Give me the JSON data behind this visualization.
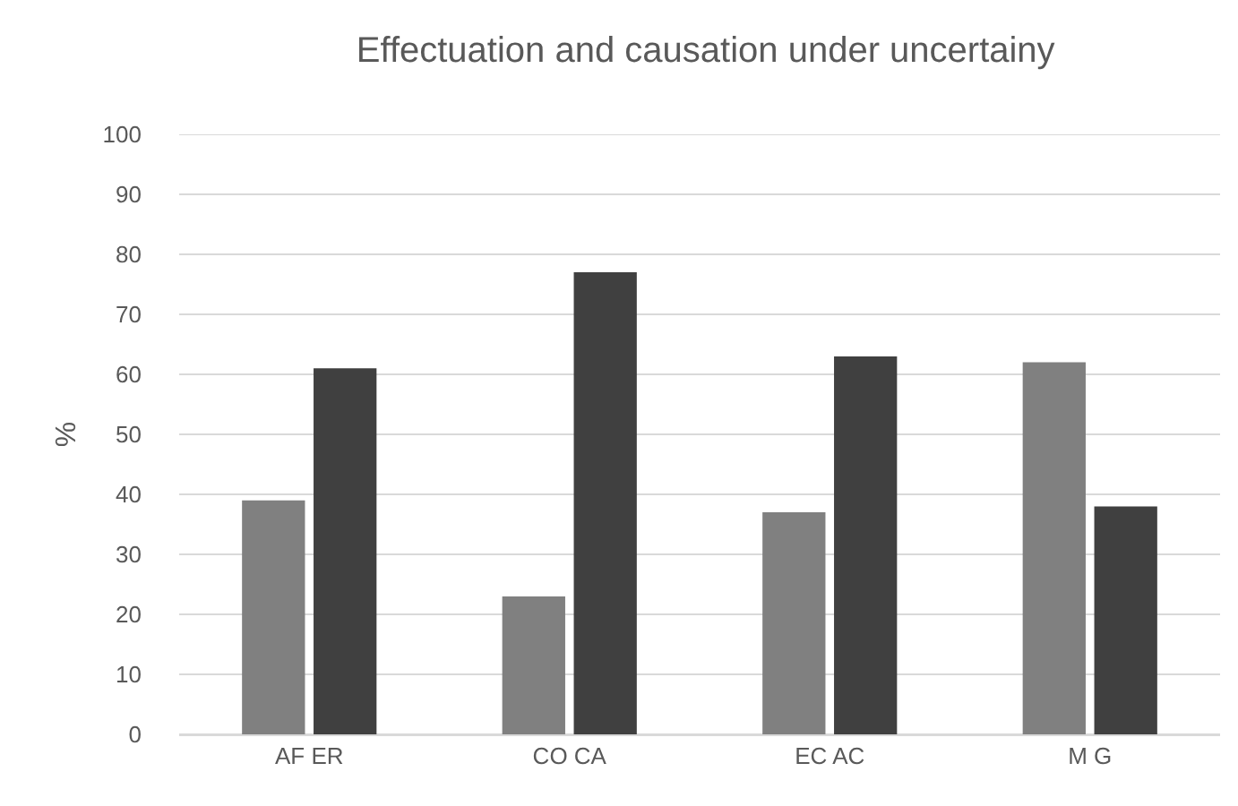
{
  "chart_data": {
    "type": "bar",
    "title": "Effectuation and causation under uncertainy",
    "ylabel": "%",
    "categories": [
      "AF ER",
      "CO CA",
      "EC AC",
      "M G"
    ],
    "series": [
      {
        "color": "#808080",
        "values": [
          39,
          23,
          37,
          62
        ]
      },
      {
        "color": "#404040",
        "values": [
          61,
          77,
          63,
          38
        ]
      }
    ],
    "ylim": [
      0,
      100
    ],
    "yticks": [
      0,
      10,
      20,
      30,
      40,
      50,
      60,
      70,
      80,
      90,
      100
    ],
    "grid": "y"
  }
}
